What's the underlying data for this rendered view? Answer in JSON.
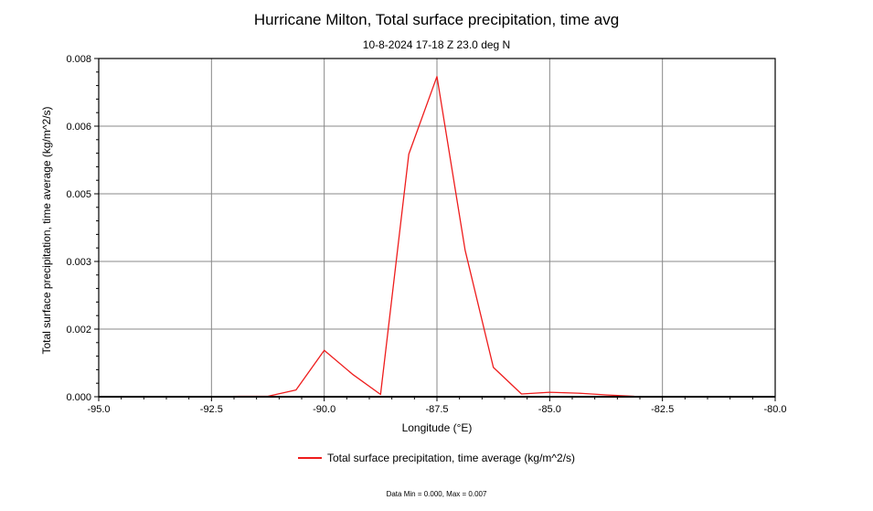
{
  "chart_data": {
    "type": "line",
    "title": "Hurricane Milton, Total surface precipitation, time avg",
    "subtitle": "10-8-2024 17-18 Z 23.0 deg N",
    "xlabel": "Longitude (°E)",
    "ylabel": "Total surface precipitation, time average (kg/m^2/s)",
    "xlim": [
      -95.0,
      -80.0
    ],
    "ylim": [
      0.0,
      0.0075
    ],
    "xticks": [
      -95.0,
      -92.5,
      -90.0,
      -87.5,
      -85.0,
      -82.5,
      -80.0
    ],
    "xtick_labels": [
      "-95.0",
      "-92.5",
      "-90.0",
      "-87.5",
      "-85.0",
      "-82.5",
      "-80.0"
    ],
    "yticks": [
      0.0,
      0.0015,
      0.003,
      0.0045,
      0.006,
      0.0075
    ],
    "ytick_labels": [
      "0.000",
      "0.002",
      "0.003",
      "0.005",
      "0.006",
      "0.008"
    ],
    "grid": true,
    "legend_position": "bottom",
    "series": [
      {
        "name": "Total surface precipitation, time average (kg/m^2/s)",
        "color": "#ee1c1c",
        "x": [
          -95.0,
          -94.375,
          -93.75,
          -93.125,
          -92.5,
          -91.875,
          -91.25,
          -90.625,
          -90.0,
          -89.375,
          -88.75,
          -88.125,
          -87.5,
          -86.875,
          -86.25,
          -85.625,
          -85.0,
          -84.375,
          -83.75,
          -83.125,
          -82.5,
          -81.875,
          -81.25,
          -80.625,
          -80.0
        ],
        "y": [
          0.0,
          0.0,
          0.0,
          0.0,
          0.0,
          1e-05,
          1e-05,
          0.00015,
          0.00103,
          0.0005,
          5e-05,
          0.00538,
          0.0071,
          0.00325,
          0.00065,
          6e-05,
          0.0001,
          8e-05,
          4e-05,
          1e-05,
          0.0,
          0.0,
          0.0,
          0.0,
          0.0
        ]
      }
    ]
  },
  "footer_text": "Data Min = 0.000, Max = 0.007"
}
